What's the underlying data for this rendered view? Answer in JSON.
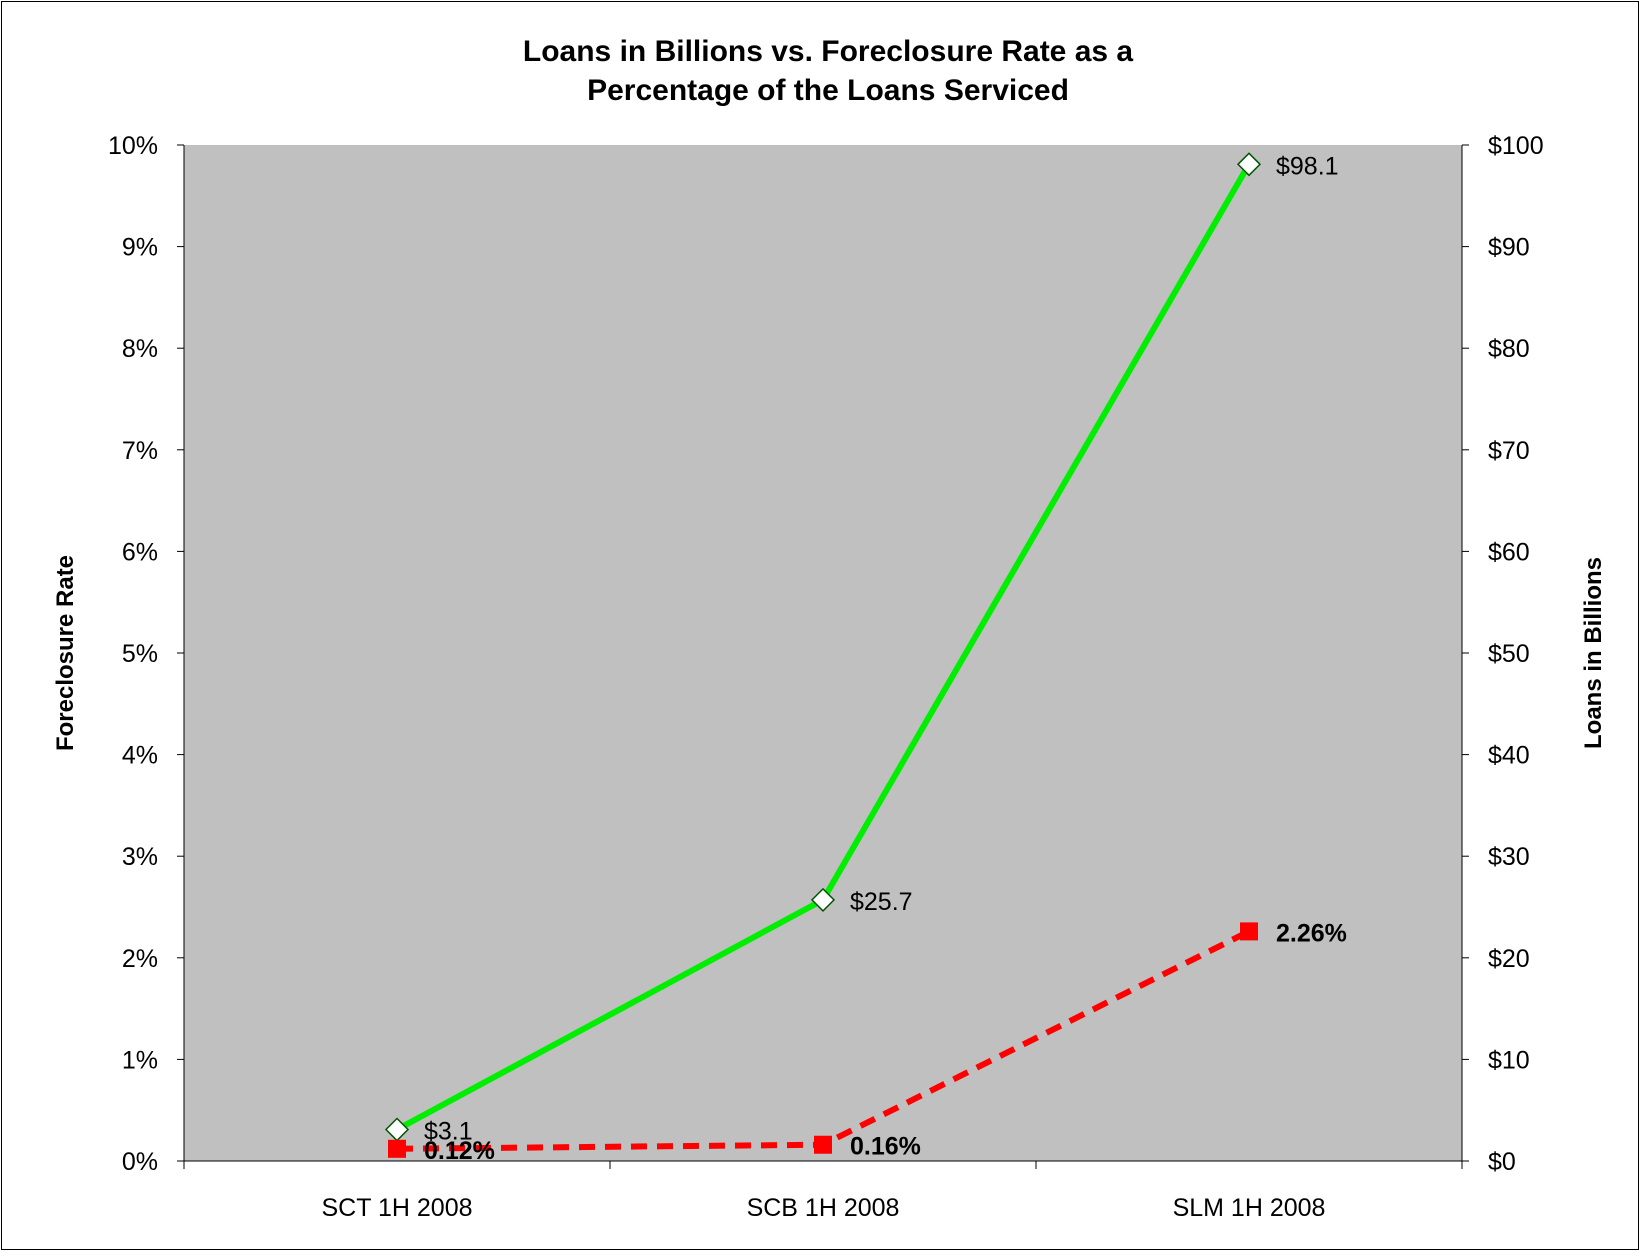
{
  "chart_data": {
    "type": "line",
    "title_lines": [
      "Loans in Billions vs. Foreclosure Rate as a",
      "Percentage of the Loans  Serviced"
    ],
    "ylabel": "Foreclosure Rate",
    "y2label": "Loans in Billions",
    "categories": [
      "SCT 1H 2008",
      "SCB 1H 2008",
      "SLM 1H 2008"
    ],
    "ylim": [
      0,
      10
    ],
    "y2lim": [
      0,
      100
    ],
    "y_ticks": [
      "0%",
      "1%",
      "2%",
      "3%",
      "4%",
      "5%",
      "6%",
      "7%",
      "8%",
      "9%",
      "10%"
    ],
    "y2_ticks": [
      "$0",
      "$10",
      "$20",
      "$30",
      "$40",
      "$50",
      "$60",
      "$70",
      "$80",
      "$90",
      "$100"
    ],
    "series": [
      {
        "axis": "right",
        "values": [
          3.1,
          25.7,
          98.1
        ],
        "labels": [
          "$3.1",
          "$25.7",
          "$98.1"
        ],
        "color": "#00ee00",
        "marker": "diamond",
        "line_style": "solid"
      },
      {
        "axis": "left",
        "values": [
          0.12,
          0.16,
          2.26
        ],
        "labels": [
          "0.12%",
          "0.16%",
          "2.26%"
        ],
        "color": "#ff0000",
        "marker": "square",
        "line_style": "dashed"
      }
    ],
    "plot_background": "#c0c0c0",
    "grid": false,
    "legend": "none"
  }
}
